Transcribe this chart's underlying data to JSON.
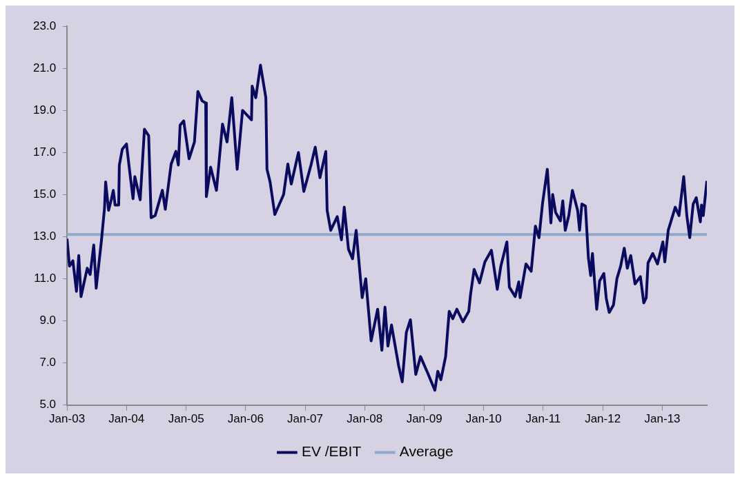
{
  "chart_data": {
    "type": "line",
    "xlim": [
      "2003-01-01",
      "2013-10-01"
    ],
    "xticks": [
      {
        "value": "2003-01-01",
        "label": "Jan-03"
      },
      {
        "value": "2004-01-01",
        "label": "Jan-04"
      },
      {
        "value": "2005-01-01",
        "label": "Jan-05"
      },
      {
        "value": "2006-01-01",
        "label": "Jan-06"
      },
      {
        "value": "2007-01-01",
        "label": "Jan-07"
      },
      {
        "value": "2008-01-01",
        "label": "Jan-08"
      },
      {
        "value": "2009-01-01",
        "label": "Jan-09"
      },
      {
        "value": "2010-01-01",
        "label": "Jan-10"
      },
      {
        "value": "2011-01-01",
        "label": "Jan-11"
      },
      {
        "value": "2012-01-01",
        "label": "Jan-12"
      },
      {
        "value": "2013-01-01",
        "label": "Jan-13"
      }
    ],
    "ylim": [
      5,
      23
    ],
    "yticks": [
      {
        "value": 5,
        "label": "5.0"
      },
      {
        "value": 7,
        "label": "7.0"
      },
      {
        "value": 9,
        "label": "9.0"
      },
      {
        "value": 11,
        "label": "11.0"
      },
      {
        "value": 13,
        "label": "13.0"
      },
      {
        "value": 15,
        "label": "15.0"
      },
      {
        "value": 17,
        "label": "17.0"
      },
      {
        "value": 19,
        "label": "19.0"
      },
      {
        "value": 21,
        "label": "21.0"
      },
      {
        "value": 23,
        "label": "23.0"
      }
    ],
    "grid": false,
    "legend": "bottom",
    "marker": "none",
    "line_style": "solid",
    "series": [
      {
        "name": "EV /EBIT",
        "color": "#0a0a5e",
        "x": [
          "2003-01-01",
          "2003-01-16",
          "2003-02-06",
          "2003-02-28",
          "2003-03-14",
          "2003-03-28",
          "2003-05-05",
          "2003-05-23",
          "2003-06-14",
          "2003-06-29",
          "2003-07-31",
          "2003-08-19",
          "2003-08-26",
          "2003-09-13",
          "2003-10-01",
          "2003-10-12",
          "2003-10-23",
          "2003-11-14",
          "2003-11-18",
          "2003-12-06",
          "2004-01-01",
          "2004-01-19",
          "2004-02-10",
          "2004-02-21",
          "2004-03-25",
          "2004-04-20",
          "2004-05-16",
          "2004-05-31",
          "2004-06-25",
          "2004-08-08",
          "2004-08-26",
          "2004-10-01",
          "2004-10-30",
          "2004-11-14",
          "2004-11-25",
          "2004-12-17",
          "2005-01-19",
          "2005-02-21",
          "2005-03-14",
          "2005-04-09",
          "2005-05-01",
          "2005-05-05",
          "2005-05-31",
          "2005-07-06",
          "2005-08-12",
          "2005-09-09",
          "2005-10-08",
          "2005-11-10",
          "2005-12-13",
          "2006-02-06",
          "2006-02-10",
          "2006-03-04",
          "2006-04-02",
          "2006-05-05",
          "2006-05-12",
          "2006-05-31",
          "2006-06-29",
          "2006-08-22",
          "2006-09-17",
          "2006-10-08",
          "2006-11-21",
          "2006-12-24",
          "2007-02-06",
          "2007-03-04",
          "2007-04-02",
          "2007-05-08",
          "2007-05-16",
          "2007-06-07",
          "2007-07-17",
          "2007-08-12",
          "2007-08-29",
          "2007-09-24",
          "2007-10-19",
          "2007-11-10",
          "2007-12-17",
          "2008-01-08",
          "2008-02-10",
          "2008-03-21",
          "2008-04-16",
          "2008-05-05",
          "2008-05-23",
          "2008-06-14",
          "2008-07-28",
          "2008-08-19",
          "2008-09-13",
          "2008-10-08",
          "2008-11-10",
          "2008-12-09",
          "2009-01-23",
          "2009-03-07",
          "2009-03-25",
          "2009-04-13",
          "2009-05-12",
          "2009-06-03",
          "2009-06-25",
          "2009-07-20",
          "2009-08-26",
          "2009-10-01",
          "2009-10-12",
          "2009-11-03",
          "2009-12-06",
          "2010-01-08",
          "2010-02-17",
          "2010-03-25",
          "2010-04-16",
          "2010-05-23",
          "2010-06-07",
          "2010-07-13",
          "2010-08-04",
          "2010-08-12",
          "2010-09-17",
          "2010-10-19",
          "2010-11-14",
          "2010-12-06",
          "2010-12-28",
          "2011-01-26",
          "2011-02-17",
          "2011-02-28",
          "2011-03-18",
          "2011-04-16",
          "2011-05-01",
          "2011-05-16",
          "2011-06-07",
          "2011-06-29",
          "2011-07-31",
          "2011-08-12",
          "2011-08-26",
          "2011-09-17",
          "2011-10-05",
          "2011-10-19",
          "2011-10-30",
          "2011-11-25",
          "2011-12-13",
          "2012-01-08",
          "2012-01-23",
          "2012-02-10",
          "2012-03-07",
          "2012-03-28",
          "2012-04-20",
          "2012-05-12",
          "2012-05-31",
          "2012-06-21",
          "2012-07-17",
          "2012-08-19",
          "2012-09-09",
          "2012-09-24",
          "2012-10-05",
          "2012-11-03",
          "2012-12-02",
          "2013-01-04",
          "2013-01-16",
          "2013-02-06",
          "2013-03-21",
          "2013-04-13",
          "2013-05-12",
          "2013-05-31",
          "2013-06-18",
          "2013-07-09",
          "2013-07-28",
          "2013-08-22",
          "2013-08-29",
          "2013-09-09",
          "2013-10-01"
        ],
        "values": [
          12.9,
          11.6,
          11.85,
          10.4,
          12.1,
          10.15,
          11.5,
          11.2,
          12.6,
          10.55,
          12.8,
          14.35,
          15.6,
          14.25,
          14.8,
          15.2,
          14.5,
          14.5,
          16.4,
          17.15,
          17.4,
          16.2,
          14.8,
          15.85,
          14.75,
          18.1,
          17.8,
          13.9,
          14.0,
          15.2,
          14.3,
          16.45,
          17.05,
          16.4,
          18.3,
          18.5,
          16.7,
          17.5,
          19.9,
          19.45,
          19.35,
          14.9,
          16.3,
          15.2,
          18.35,
          17.5,
          19.6,
          16.2,
          19.0,
          18.55,
          20.15,
          19.6,
          21.15,
          19.6,
          16.2,
          15.6,
          14.05,
          15.0,
          16.45,
          15.5,
          17.0,
          15.15,
          16.4,
          17.25,
          15.8,
          17.05,
          14.25,
          13.3,
          13.95,
          12.85,
          14.4,
          12.4,
          11.95,
          13.3,
          10.1,
          11.0,
          8.05,
          9.55,
          7.6,
          9.65,
          7.8,
          8.8,
          6.85,
          6.1,
          8.45,
          9.05,
          6.45,
          7.3,
          6.5,
          5.7,
          6.6,
          6.2,
          7.3,
          9.45,
          9.1,
          9.55,
          8.95,
          9.45,
          10.25,
          11.45,
          10.8,
          11.8,
          12.35,
          10.5,
          11.6,
          12.75,
          10.6,
          10.15,
          10.85,
          10.1,
          11.7,
          11.35,
          13.5,
          12.95,
          14.6,
          16.2,
          13.65,
          15.0,
          14.15,
          13.75,
          14.7,
          13.3,
          14.0,
          15.2,
          14.25,
          13.3,
          14.55,
          14.45,
          12.0,
          11.15,
          12.2,
          9.55,
          10.9,
          11.25,
          10.05,
          9.4,
          9.75,
          11.0,
          11.6,
          12.45,
          11.5,
          12.1,
          10.75,
          11.1,
          9.85,
          10.1,
          11.75,
          12.2,
          11.7,
          12.75,
          11.8,
          13.3,
          14.4,
          14.0,
          15.85,
          14.0,
          12.95,
          14.55,
          14.85,
          13.7,
          14.5,
          14.0,
          15.65
        ]
      },
      {
        "name": "Average",
        "color": "#8fa8cc",
        "x": [
          "2003-01-01",
          "2013-10-01"
        ],
        "values": [
          13.1,
          13.1
        ]
      }
    ]
  }
}
